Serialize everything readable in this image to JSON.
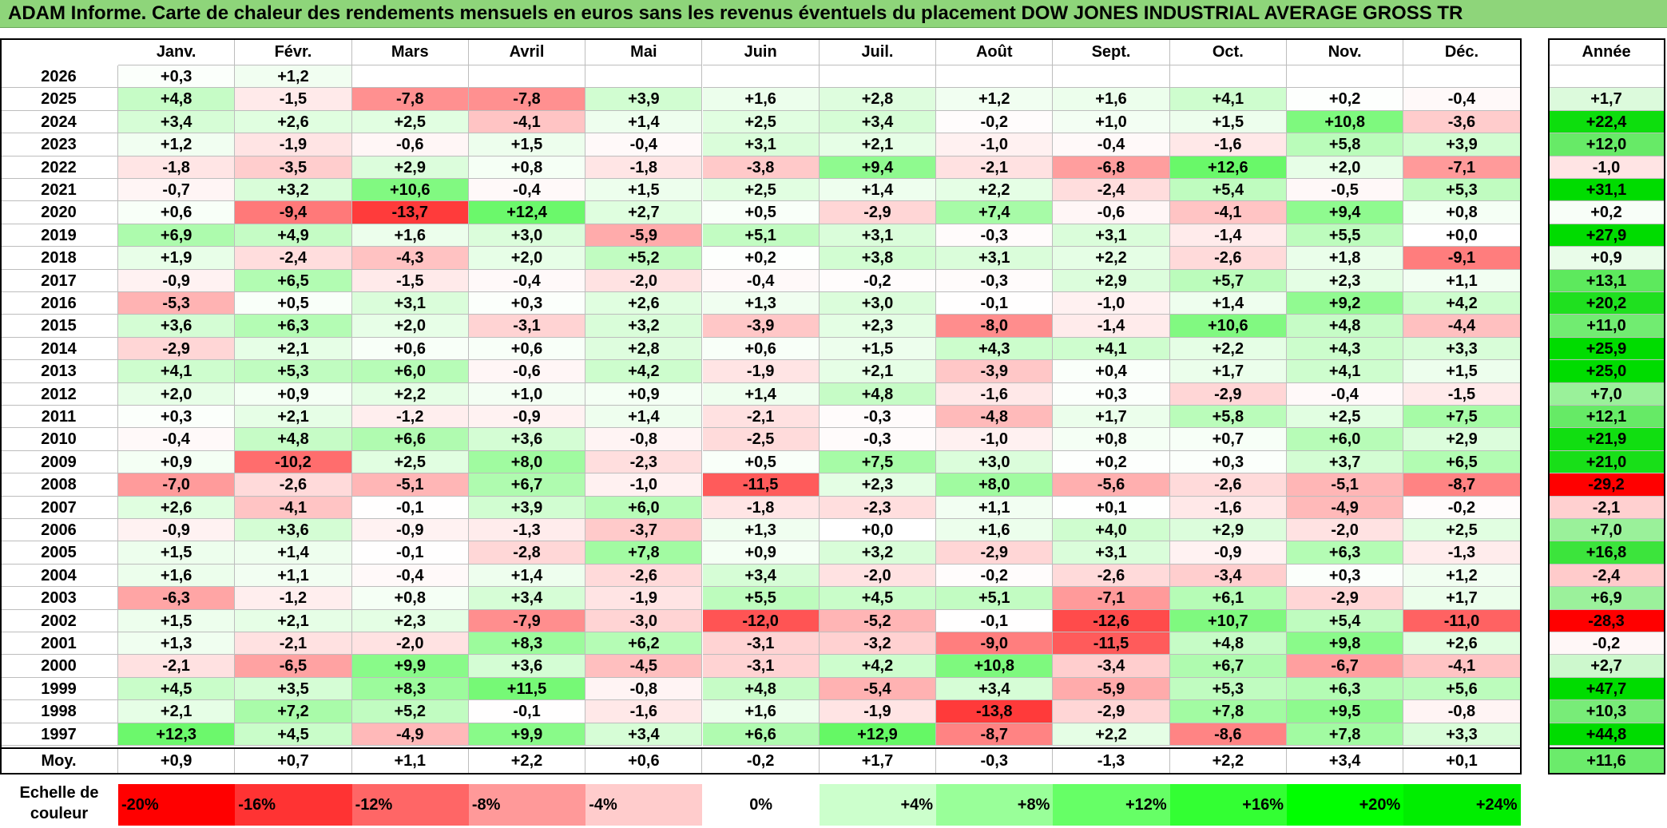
{
  "title": "ADAM Informe. Carte de chaleur des rendements mensuels en euros sans les revenus éventuels du placement DOW JONES INDUSTRIAL AVERAGE GROSS TR",
  "chart_data": {
    "type": "heatmap",
    "title": "ADAM Informe. Carte de chaleur des rendements mensuels en euros sans les revenus éventuels du placement DOW JONES INDUSTRIAL AVERAGE GROSS TR",
    "months": [
      "Janv.",
      "Févr.",
      "Mars",
      "Avril",
      "Mai",
      "Juin",
      "Juil.",
      "Août",
      "Sept.",
      "Oct.",
      "Nov.",
      "Déc."
    ],
    "annual_header": "Année",
    "rows": [
      {
        "year": "2026",
        "values": [
          "+0,3",
          "+1,2",
          null,
          null,
          null,
          null,
          null,
          null,
          null,
          null,
          null,
          null
        ],
        "annual": null
      },
      {
        "year": "2025",
        "values": [
          "+4,8",
          "-1,5",
          "-7,8",
          "-7,8",
          "+3,9",
          "+1,6",
          "+2,8",
          "+1,2",
          "+1,6",
          "+4,1",
          "+0,2",
          "-0,4"
        ],
        "annual": "+1,7"
      },
      {
        "year": "2024",
        "values": [
          "+3,4",
          "+2,6",
          "+2,5",
          "-4,1",
          "+1,4",
          "+2,5",
          "+3,4",
          "-0,2",
          "+1,0",
          "+1,5",
          "+10,8",
          "-3,6"
        ],
        "annual": "+22,4"
      },
      {
        "year": "2023",
        "values": [
          "+1,2",
          "-1,9",
          "-0,6",
          "+1,5",
          "-0,4",
          "+3,1",
          "+2,1",
          "-1,0",
          "-0,4",
          "-1,6",
          "+5,8",
          "+3,9"
        ],
        "annual": "+12,0"
      },
      {
        "year": "2022",
        "values": [
          "-1,8",
          "-3,5",
          "+2,9",
          "+0,8",
          "-1,8",
          "-3,8",
          "+9,4",
          "-2,1",
          "-6,8",
          "+12,6",
          "+2,0",
          "-7,1"
        ],
        "annual": "-1,0"
      },
      {
        "year": "2021",
        "values": [
          "-0,7",
          "+3,2",
          "+10,6",
          "-0,4",
          "+1,5",
          "+2,5",
          "+1,4",
          "+2,2",
          "-2,4",
          "+5,4",
          "-0,5",
          "+5,3"
        ],
        "annual": "+31,1"
      },
      {
        "year": "2020",
        "values": [
          "+0,6",
          "-9,4",
          "-13,7",
          "+12,4",
          "+2,7",
          "+0,5",
          "-2,9",
          "+7,4",
          "-0,6",
          "-4,1",
          "+9,4",
          "+0,8"
        ],
        "annual": "+0,2"
      },
      {
        "year": "2019",
        "values": [
          "+6,9",
          "+4,9",
          "+1,6",
          "+3,0",
          "-5,9",
          "+5,1",
          "+3,1",
          "-0,3",
          "+3,1",
          "-1,4",
          "+5,5",
          "+0,0"
        ],
        "annual": "+27,9"
      },
      {
        "year": "2018",
        "values": [
          "+1,9",
          "-2,4",
          "-4,3",
          "+2,0",
          "+5,2",
          "+0,2",
          "+3,8",
          "+3,1",
          "+2,2",
          "-2,6",
          "+1,8",
          "-9,1"
        ],
        "annual": "+0,9"
      },
      {
        "year": "2017",
        "values": [
          "-0,9",
          "+6,5",
          "-1,5",
          "-0,4",
          "-2,0",
          "-0,4",
          "-0,2",
          "-0,3",
          "+2,9",
          "+5,7",
          "+2,3",
          "+1,1"
        ],
        "annual": "+13,1"
      },
      {
        "year": "2016",
        "values": [
          "-5,3",
          "+0,5",
          "+3,1",
          "+0,3",
          "+2,6",
          "+1,3",
          "+3,0",
          "-0,1",
          "-1,0",
          "+1,4",
          "+9,2",
          "+4,2"
        ],
        "annual": "+20,2"
      },
      {
        "year": "2015",
        "values": [
          "+3,6",
          "+6,3",
          "+2,0",
          "-3,1",
          "+3,2",
          "-3,9",
          "+2,3",
          "-8,0",
          "-1,4",
          "+10,6",
          "+4,8",
          "-4,4"
        ],
        "annual": "+11,0"
      },
      {
        "year": "2014",
        "values": [
          "-2,9",
          "+2,1",
          "+0,6",
          "+0,6",
          "+2,8",
          "+0,6",
          "+1,5",
          "+4,3",
          "+4,1",
          "+2,2",
          "+4,3",
          "+3,3"
        ],
        "annual": "+25,9"
      },
      {
        "year": "2013",
        "values": [
          "+4,1",
          "+5,3",
          "+6,0",
          "-0,6",
          "+4,2",
          "-1,9",
          "+2,1",
          "-3,9",
          "+0,4",
          "+1,7",
          "+4,1",
          "+1,5"
        ],
        "annual": "+25,0"
      },
      {
        "year": "2012",
        "values": [
          "+2,0",
          "+0,9",
          "+2,2",
          "+1,0",
          "+0,9",
          "+1,4",
          "+4,8",
          "-1,6",
          "+0,3",
          "-2,9",
          "-0,4",
          "-1,5"
        ],
        "annual": "+7,0"
      },
      {
        "year": "2011",
        "values": [
          "+0,3",
          "+2,1",
          "-1,2",
          "-0,9",
          "+1,4",
          "-2,1",
          "-0,3",
          "-4,8",
          "+1,7",
          "+5,8",
          "+2,5",
          "+7,5"
        ],
        "annual": "+12,1"
      },
      {
        "year": "2010",
        "values": [
          "-0,4",
          "+4,8",
          "+6,6",
          "+3,6",
          "-0,8",
          "-2,5",
          "-0,3",
          "-1,0",
          "+0,8",
          "+0,7",
          "+6,0",
          "+2,9"
        ],
        "annual": "+21,9"
      },
      {
        "year": "2009",
        "values": [
          "+0,9",
          "-10,2",
          "+2,5",
          "+8,0",
          "-2,3",
          "+0,5",
          "+7,5",
          "+3,0",
          "+0,2",
          "+0,3",
          "+3,7",
          "+6,5"
        ],
        "annual": "+21,0"
      },
      {
        "year": "2008",
        "values": [
          "-7,0",
          "-2,6",
          "-5,1",
          "+6,7",
          "-1,0",
          "-11,5",
          "+2,3",
          "+8,0",
          "-5,6",
          "-2,6",
          "-5,1",
          "-8,7"
        ],
        "annual": "-29,2"
      },
      {
        "year": "2007",
        "values": [
          "+2,6",
          "-4,1",
          "-0,1",
          "+3,9",
          "+6,0",
          "-1,8",
          "-2,3",
          "+1,1",
          "+0,1",
          "-1,6",
          "-4,9",
          "-0,2"
        ],
        "annual": "-2,1"
      },
      {
        "year": "2006",
        "values": [
          "-0,9",
          "+3,6",
          "-0,9",
          "-1,3",
          "-3,7",
          "+1,3",
          "+0,0",
          "+1,6",
          "+4,0",
          "+2,9",
          "-2,0",
          "+2,5"
        ],
        "annual": "+7,0"
      },
      {
        "year": "2005",
        "values": [
          "+1,5",
          "+1,4",
          "-0,1",
          "-2,8",
          "+7,8",
          "+0,9",
          "+3,2",
          "-2,9",
          "+3,1",
          "-0,9",
          "+6,3",
          "-1,3"
        ],
        "annual": "+16,8"
      },
      {
        "year": "2004",
        "values": [
          "+1,6",
          "+1,1",
          "-0,4",
          "+1,4",
          "-2,6",
          "+3,4",
          "-2,0",
          "-0,2",
          "-2,6",
          "-3,4",
          "+0,3",
          "+1,2"
        ],
        "annual": "-2,4"
      },
      {
        "year": "2003",
        "values": [
          "-6,3",
          "-1,2",
          "+0,8",
          "+3,4",
          "-1,9",
          "+5,5",
          "+4,5",
          "+5,1",
          "-7,1",
          "+6,1",
          "-2,9",
          "+1,7"
        ],
        "annual": "+6,9"
      },
      {
        "year": "2002",
        "values": [
          "+1,5",
          "+2,1",
          "+2,3",
          "-7,9",
          "-3,0",
          "-12,0",
          "-5,2",
          "-0,1",
          "-12,6",
          "+10,7",
          "+5,4",
          "-11,0"
        ],
        "annual": "-28,3"
      },
      {
        "year": "2001",
        "values": [
          "+1,3",
          "-2,1",
          "-2,0",
          "+8,3",
          "+6,2",
          "-3,1",
          "-3,2",
          "-9,0",
          "-11,5",
          "+4,8",
          "+9,8",
          "+2,6"
        ],
        "annual": "-0,2"
      },
      {
        "year": "2000",
        "values": [
          "-2,1",
          "-6,5",
          "+9,9",
          "+3,6",
          "-4,5",
          "-3,1",
          "+4,2",
          "+10,8",
          "-3,4",
          "+6,7",
          "-6,7",
          "-4,1"
        ],
        "annual": "+2,7"
      },
      {
        "year": "1999",
        "values": [
          "+4,5",
          "+3,5",
          "+8,3",
          "+11,5",
          "-0,8",
          "+4,8",
          "-5,4",
          "+3,4",
          "-5,9",
          "+5,3",
          "+6,3",
          "+5,6"
        ],
        "annual": "+47,7"
      },
      {
        "year": "1998",
        "values": [
          "+2,1",
          "+7,2",
          "+5,2",
          "-0,1",
          "-1,6",
          "+1,6",
          "-1,9",
          "-13,8",
          "-2,9",
          "+7,8",
          "+9,5",
          "-0,8"
        ],
        "annual": "+10,3"
      },
      {
        "year": "1997",
        "values": [
          "+12,3",
          "+4,5",
          "-4,9",
          "+9,9",
          "+3,4",
          "+6,6",
          "+12,9",
          "-8,7",
          "+2,2",
          "-8,6",
          "+7,8",
          "+3,3"
        ],
        "annual": "+44,8"
      }
    ],
    "average": {
      "label": "Moy.",
      "values": [
        "+0,9",
        "+0,7",
        "+1,1",
        "+2,2",
        "+0,6",
        "-0,2",
        "+1,7",
        "-0,3",
        "-1,3",
        "+2,2",
        "+3,4",
        "+0,1"
      ],
      "annual": "+11,6"
    },
    "color_scale": {
      "label": "Echelle de couleur",
      "stops": [
        {
          "label": "-20%",
          "value": -20,
          "color": "#ff0000"
        },
        {
          "label": "-16%",
          "value": -16,
          "color": "#ff3333"
        },
        {
          "label": "-12%",
          "value": -12,
          "color": "#ff6666"
        },
        {
          "label": "-8%",
          "value": -8,
          "color": "#ff9999"
        },
        {
          "label": "-4%",
          "value": -4,
          "color": "#ffcccc"
        },
        {
          "label": "0%",
          "value": 0,
          "color": "#ffffff"
        },
        {
          "label": "+4%",
          "value": 4,
          "color": "#ccffcc"
        },
        {
          "label": "+8%",
          "value": 8,
          "color": "#99ff99"
        },
        {
          "label": "+12%",
          "value": 12,
          "color": "#66ff66"
        },
        {
          "label": "+16%",
          "value": 16,
          "color": "#33ff33"
        },
        {
          "label": "+20%",
          "value": 20,
          "color": "#00ff00"
        },
        {
          "label": "+24%",
          "value": 24,
          "color": "#00ee00"
        }
      ]
    }
  }
}
